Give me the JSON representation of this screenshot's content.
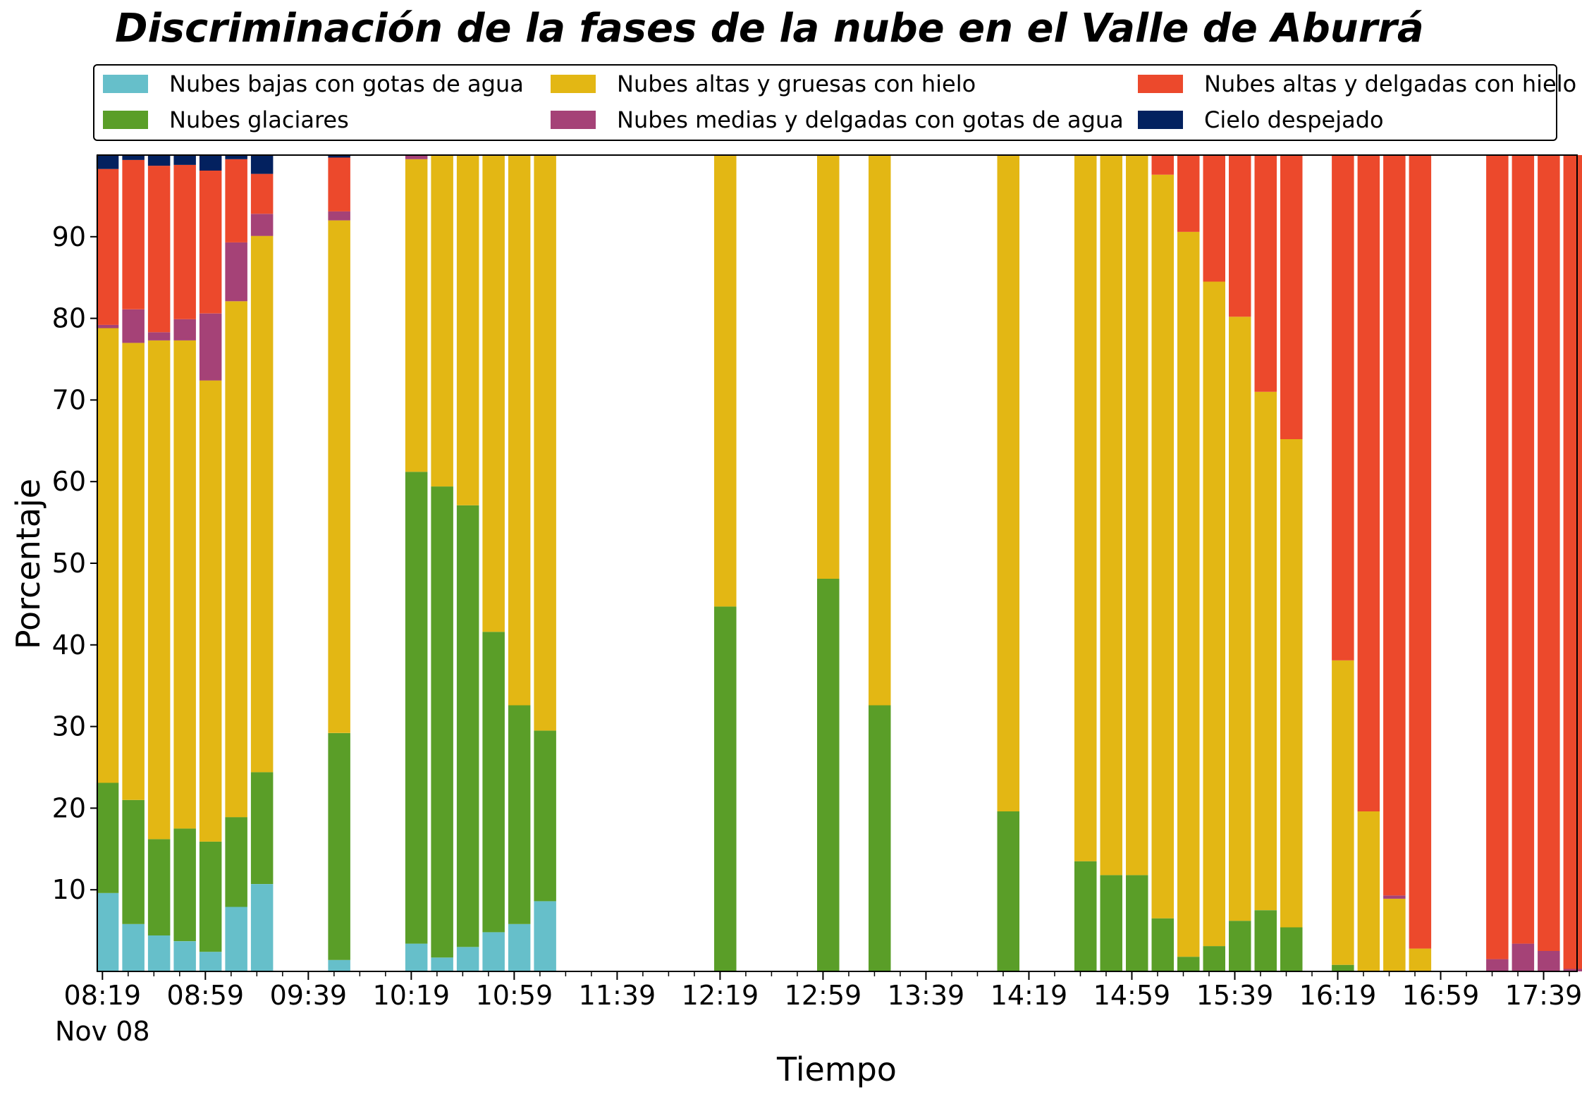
{
  "title": "Discriminación de la fases de la nube en el Valle de Aburrá",
  "legend": [
    {
      "label": "Nubes bajas con gotas de agua",
      "color": "#66bfca"
    },
    {
      "label": "Nubes altas y gruesas con hielo",
      "color": "#e3b714"
    },
    {
      "label": "Nubes altas y delgadas con hielo",
      "color": "#ec492c"
    },
    {
      "label": "Nubes glaciares",
      "color": "#5a9e28"
    },
    {
      "label": "Nubes medias y delgadas con gotas de agua",
      "color": "#a54277"
    },
    {
      "label": "Cielo despejado",
      "color": "#03215f"
    }
  ],
  "chart_data": {
    "type": "bar",
    "stacked": true,
    "title": "Discriminación de la fases de la nube en el Valle de Aburrá",
    "xlabel": "Tiempo",
    "ylabel": "Porcentaje",
    "ylim": [
      0,
      100
    ],
    "yticks": [
      10,
      20,
      30,
      40,
      50,
      60,
      70,
      80,
      90
    ],
    "xlim_minutes": [
      8.1,
      9.9
    ],
    "xticks": [
      {
        "label": "08:19",
        "t": "08:19"
      },
      {
        "label": "08:59",
        "t": "08:59"
      },
      {
        "label": "09:39",
        "t": "09:39"
      },
      {
        "label": "10:19",
        "t": "10:19"
      },
      {
        "label": "10:59",
        "t": "10:59"
      },
      {
        "label": "11:39",
        "t": "11:39"
      },
      {
        "label": "12:19",
        "t": "12:19"
      },
      {
        "label": "12:59",
        "t": "12:59"
      },
      {
        "label": "13:39",
        "t": "13:39"
      },
      {
        "label": "14:19",
        "t": "14:19"
      },
      {
        "label": "14:59",
        "t": "14:59"
      },
      {
        "label": "15:39",
        "t": "15:39"
      },
      {
        "label": "16:19",
        "t": "16:19"
      },
      {
        "label": "16:59",
        "t": "16:59"
      },
      {
        "label": "17:39",
        "t": "17:39"
      }
    ],
    "date_label": "Nov 08",
    "x_range": [
      "08:17",
      "17:52"
    ],
    "series": [
      {
        "name": "Nubes bajas con gotas de agua",
        "color": "#66bfca"
      },
      {
        "name": "Nubes glaciares",
        "color": "#5a9e28"
      },
      {
        "name": "Nubes altas y gruesas con hielo",
        "color": "#e3b714"
      },
      {
        "name": "Nubes medias y delgadas con gotas de agua",
        "color": "#a54277"
      },
      {
        "name": "Nubes altas y delgadas con hielo",
        "color": "#ec492c"
      },
      {
        "name": "Cielo despejado",
        "color": "#03215f"
      }
    ],
    "bars": [
      {
        "t": "08:21",
        "values": [
          9.6,
          13.5,
          55.7,
          0.4,
          19.1,
          1.7
        ]
      },
      {
        "t": "08:31",
        "values": [
          5.8,
          15.2,
          56.0,
          4.1,
          18.3,
          0.6
        ]
      },
      {
        "t": "08:41",
        "values": [
          4.4,
          11.8,
          61.1,
          1.0,
          20.4,
          1.3
        ]
      },
      {
        "t": "08:51",
        "values": [
          3.7,
          13.8,
          59.8,
          2.6,
          18.9,
          1.2
        ]
      },
      {
        "t": "09:01",
        "values": [
          2.4,
          13.5,
          56.5,
          8.2,
          17.5,
          1.9
        ]
      },
      {
        "t": "09:11",
        "values": [
          7.9,
          11.0,
          63.2,
          7.2,
          10.2,
          0.5
        ]
      },
      {
        "t": "09:21",
        "values": [
          10.7,
          13.7,
          65.7,
          2.7,
          4.9,
          2.3
        ]
      },
      {
        "t": "09:51",
        "values": [
          1.4,
          27.8,
          62.8,
          1.1,
          6.6,
          0.3
        ]
      },
      {
        "t": "10:21",
        "values": [
          3.4,
          57.8,
          38.3,
          0.5,
          0.0,
          0.0
        ]
      },
      {
        "t": "10:31",
        "values": [
          1.7,
          57.7,
          40.6,
          0.0,
          0.0,
          0.0
        ]
      },
      {
        "t": "10:41",
        "values": [
          3.0,
          54.1,
          42.9,
          0.0,
          0.0,
          0.0
        ]
      },
      {
        "t": "10:51",
        "values": [
          4.8,
          36.8,
          58.4,
          0.0,
          0.0,
          0.0
        ]
      },
      {
        "t": "11:01",
        "values": [
          5.8,
          26.8,
          67.4,
          0.0,
          0.0,
          0.0
        ]
      },
      {
        "t": "11:11",
        "values": [
          8.6,
          20.9,
          70.5,
          0.0,
          0.0,
          0.0
        ]
      },
      {
        "t": "12:21",
        "values": [
          0.0,
          44.7,
          55.3,
          0.0,
          0.0,
          0.0
        ]
      },
      {
        "t": "13:01",
        "values": [
          0.0,
          48.1,
          51.9,
          0.0,
          0.0,
          0.0
        ]
      },
      {
        "t": "13:21",
        "values": [
          0.0,
          32.6,
          67.4,
          0.0,
          0.0,
          0.0
        ]
      },
      {
        "t": "14:11",
        "values": [
          0.0,
          19.6,
          80.4,
          0.0,
          0.0,
          0.0
        ]
      },
      {
        "t": "14:41",
        "values": [
          0.0,
          13.5,
          86.5,
          0.0,
          0.0,
          0.0
        ]
      },
      {
        "t": "14:51",
        "values": [
          0.0,
          11.8,
          88.2,
          0.0,
          0.0,
          0.0
        ]
      },
      {
        "t": "15:01",
        "values": [
          0.0,
          11.8,
          88.2,
          0.0,
          0.0,
          0.0
        ]
      },
      {
        "t": "15:11",
        "values": [
          0.0,
          6.5,
          91.1,
          0.0,
          2.4,
          0.0
        ]
      },
      {
        "t": "15:21",
        "values": [
          0.0,
          1.8,
          88.8,
          0.0,
          9.4,
          0.0
        ]
      },
      {
        "t": "15:31",
        "values": [
          0.0,
          3.1,
          81.4,
          0.0,
          15.5,
          0.0
        ]
      },
      {
        "t": "15:41",
        "values": [
          0.0,
          6.2,
          74.0,
          0.0,
          19.8,
          0.0
        ]
      },
      {
        "t": "15:51",
        "values": [
          0.0,
          7.5,
          63.5,
          0.0,
          29.0,
          0.0
        ]
      },
      {
        "t": "16:01",
        "values": [
          0.0,
          5.4,
          59.8,
          0.0,
          34.8,
          0.0
        ]
      },
      {
        "t": "16:21",
        "values": [
          0.0,
          0.8,
          37.3,
          0.0,
          61.9,
          0.0
        ]
      },
      {
        "t": "16:31",
        "values": [
          0.0,
          0.0,
          19.6,
          0.0,
          80.4,
          0.0
        ]
      },
      {
        "t": "16:41",
        "values": [
          0.0,
          0.0,
          8.9,
          0.4,
          90.7,
          0.0
        ]
      },
      {
        "t": "16:51",
        "values": [
          0.0,
          0.0,
          2.8,
          0.0,
          97.2,
          0.0
        ]
      },
      {
        "t": "17:21",
        "values": [
          0.0,
          0.0,
          0.0,
          1.5,
          98.5,
          0.0
        ]
      },
      {
        "t": "17:31",
        "values": [
          0.0,
          0.0,
          0.0,
          3.4,
          96.6,
          0.0
        ]
      },
      {
        "t": "17:41",
        "values": [
          0.0,
          0.0,
          0.0,
          2.5,
          97.5,
          0.0
        ]
      },
      {
        "t": "17:51",
        "values": [
          0.0,
          0.0,
          0.0,
          0.3,
          99.7,
          0.0
        ]
      }
    ]
  }
}
